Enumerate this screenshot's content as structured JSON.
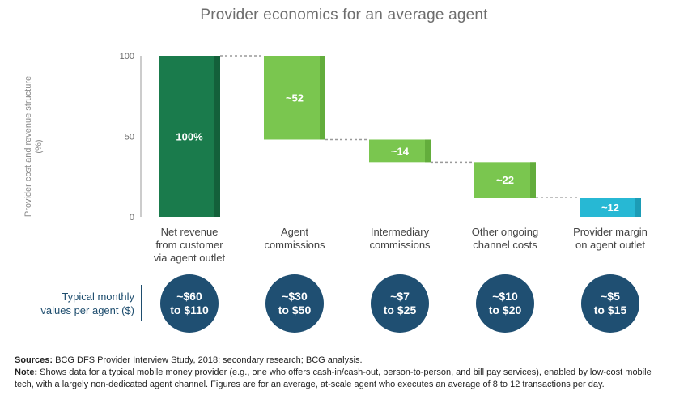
{
  "chart_data": {
    "type": "waterfall",
    "title": "Provider economics for an average agent",
    "ylabel": "Provider cost and revenue structure (%)",
    "ylim": [
      0,
      100
    ],
    "yticks": [
      0,
      50,
      100
    ],
    "categories": [
      "Net revenue\nfrom customer\nvia agent outlet",
      "Agent\ncommissions",
      "Intermediary\ncommissions",
      "Other ongoing\nchannel costs",
      "Provider margin\non agent outlet"
    ],
    "bars": [
      {
        "label": "100%",
        "base": 0,
        "top": 100,
        "color": "#1a7b4c",
        "shade": "#13603a"
      },
      {
        "label": "~52",
        "base": 48,
        "top": 100,
        "color": "#7ac64f",
        "shade": "#63ad3c"
      },
      {
        "label": "~14",
        "base": 34,
        "top": 48,
        "color": "#7ac64f",
        "shade": "#63ad3c"
      },
      {
        "label": "~22",
        "base": 12,
        "top": 34,
        "color": "#7ac64f",
        "shade": "#63ad3c"
      },
      {
        "label": "~12",
        "base": 0,
        "top": 12,
        "color": "#27b8d4",
        "shade": "#1c9cb6"
      }
    ]
  },
  "monthly": {
    "label": "Typical monthly\nvalues per agent ($)",
    "values": [
      "~$60\nto $110",
      "~$30\nto $50",
      "~$7\nto $25",
      "~$10\nto $20",
      "~$5\nto $15"
    ]
  },
  "notes": {
    "sources_label": "Sources:",
    "sources_text": "BCG DFS Provider Interview Study, 2018; secondary research; BCG analysis.",
    "note_label": "Note:",
    "note_text": "Shows data for a typical mobile money provider (e.g., one who offers cash-in/cash-out, person-to-person, and bill pay services), enabled by low-cost mobile tech, with a largely non-dedicated agent channel. Figures are for an average, at-scale agent who executes an average of 8 to 12 transactions per day."
  }
}
